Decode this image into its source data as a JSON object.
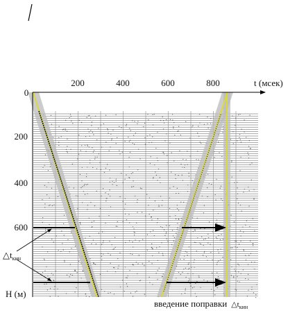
{
  "axes": {
    "origin_label": "0",
    "x_label": "t (мсек)",
    "x_ticks": [
      "200",
      "400",
      "600",
      "800"
    ],
    "y_label": "H (м)",
    "y_ticks": [
      "200",
      "400",
      "600"
    ]
  },
  "annotations": {
    "delta_symbol": "△t",
    "delta_subscript": "кин",
    "correction_label": "введение поправки"
  }
}
